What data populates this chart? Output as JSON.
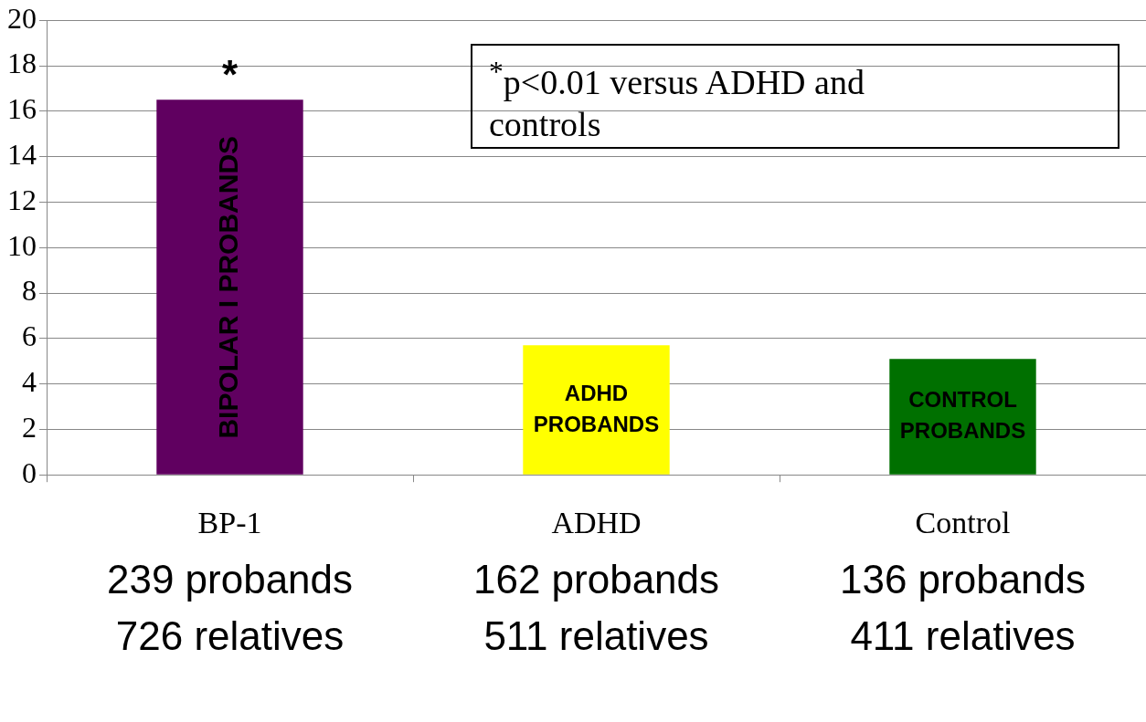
{
  "chart_data": {
    "type": "bar",
    "categories": [
      "BP-1",
      "ADHD",
      "Control"
    ],
    "values": [
      16.5,
      5.7,
      5.1
    ],
    "colors": [
      "#600060",
      "#ffff00",
      "#007000"
    ],
    "ylim": [
      0,
      20
    ],
    "yticks": [
      0,
      2,
      4,
      6,
      8,
      10,
      12,
      14,
      16,
      18,
      20
    ],
    "grid": "y",
    "legend": false,
    "annotations": [
      {
        "text": "*",
        "x": "BP-1",
        "y": 16.5
      },
      "$^{*}$p<0.01 versus ADHD and controls",
      "BIPOLAR I PROBANDS",
      "ADHD PROBANDS",
      "CONTROL PROBANDS",
      "239 probands",
      "726 relatives",
      "162 probands",
      "511 relatives",
      "136 probands",
      "411 relatives"
    ]
  }
}
